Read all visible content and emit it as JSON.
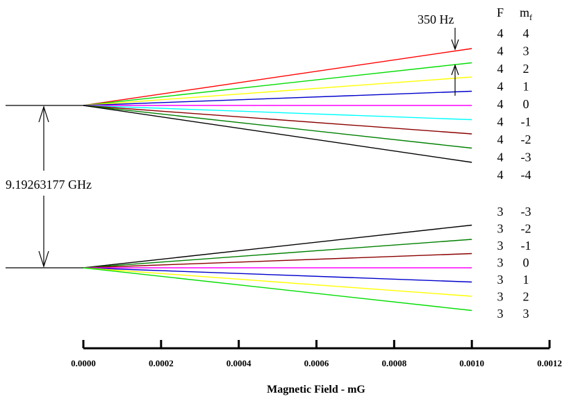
{
  "chart_data": {
    "type": "line",
    "xlabel": "Magnetic Field - mG",
    "xlim": [
      0,
      0.0012
    ],
    "x_ticks": [
      "0.0000",
      "0.0002",
      "0.0004",
      "0.0006",
      "0.0008",
      "0.0010",
      "0.0012"
    ],
    "x_tick_values": [
      0,
      0.0002,
      0.0004,
      0.0006,
      0.0008,
      0.001,
      0.0012
    ],
    "line_x_end": 0.001,
    "header": {
      "F": "F",
      "mf_base": "m",
      "mf_sub": "f"
    },
    "hyperfine_splitting": "9.19263177 GHz",
    "zeeman_spacing": "350 Hz",
    "levels": [
      {
        "F": "4",
        "mf": "4",
        "slope": 4,
        "color": "#ff0000"
      },
      {
        "F": "4",
        "mf": "3",
        "slope": 3,
        "color": "#00dd00"
      },
      {
        "F": "4",
        "mf": "2",
        "slope": 2,
        "color": "#ffff00"
      },
      {
        "F": "4",
        "mf": "1",
        "slope": 1,
        "color": "#0000cc"
      },
      {
        "F": "4",
        "mf": "0",
        "slope": 0,
        "color": "#ff00ff"
      },
      {
        "F": "4",
        "mf": "-1",
        "slope": -1,
        "color": "#00ffff"
      },
      {
        "F": "4",
        "mf": "-2",
        "slope": -2,
        "color": "#8b0000"
      },
      {
        "F": "4",
        "mf": "-3",
        "slope": -3,
        "color": "#008000"
      },
      {
        "F": "4",
        "mf": "-4",
        "slope": -4,
        "color": "#000000"
      },
      {
        "F": "3",
        "mf": "-3",
        "slope": 3,
        "color": "#000000"
      },
      {
        "F": "3",
        "mf": "-2",
        "slope": 2,
        "color": "#008000"
      },
      {
        "F": "3",
        "mf": "-1",
        "slope": 1,
        "color": "#8b0000"
      },
      {
        "F": "3",
        "mf": "0",
        "slope": 0,
        "color": "#ff00ff"
      },
      {
        "F": "3",
        "mf": "1",
        "slope": -1,
        "color": "#0000cc"
      },
      {
        "F": "3",
        "mf": "2",
        "slope": -2,
        "color": "#ffff00"
      },
      {
        "F": "3",
        "mf": "3",
        "slope": -3,
        "color": "#00dd00"
      }
    ]
  }
}
